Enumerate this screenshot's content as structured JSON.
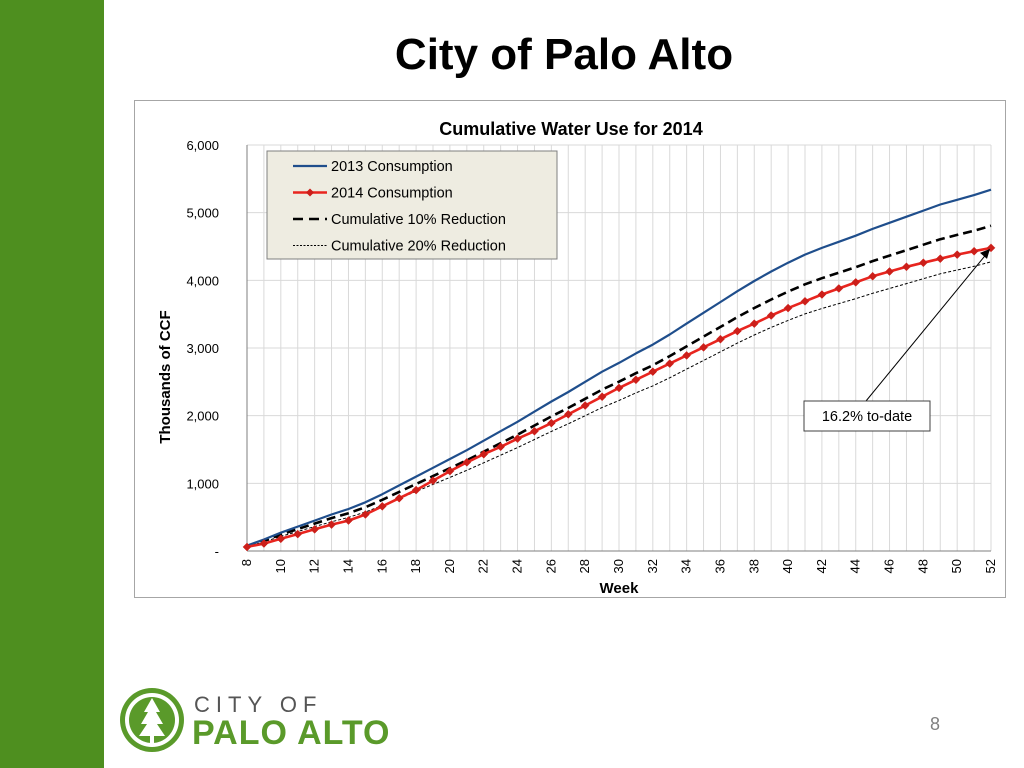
{
  "slide": {
    "title": "City of Palo Alto",
    "page_number": "8"
  },
  "logo": {
    "line1": "CITY OF",
    "line2": "PALO ALTO"
  },
  "colors": {
    "sidebar": "#4e8f1f",
    "series_2013": "#1f4e8c",
    "series_2014": "#e8251f",
    "series_2014_marker": "#cc1f1a",
    "reduction_10": "#000000",
    "reduction_20": "#000000"
  },
  "chart_data": {
    "type": "line",
    "title": "Cumulative Water Use for 2014",
    "xlabel": "Week",
    "ylabel": "Thousands of CCF",
    "xlim": [
      8,
      52
    ],
    "ylim": [
      0,
      6000
    ],
    "grid": true,
    "legend_position": "top-left",
    "x_ticks": [
      "8",
      "10",
      "12",
      "14",
      "16",
      "18",
      "20",
      "22",
      "24",
      "26",
      "28",
      "30",
      "32",
      "34",
      "36",
      "38",
      "40",
      "42",
      "44",
      "46",
      "48",
      "50",
      "52"
    ],
    "y_ticks": [
      "-",
      "1,000",
      "2,000",
      "3,000",
      "4,000",
      "5,000",
      "6,000"
    ],
    "x": [
      8,
      9,
      10,
      11,
      12,
      13,
      14,
      15,
      16,
      17,
      18,
      19,
      20,
      21,
      22,
      23,
      24,
      25,
      26,
      27,
      28,
      29,
      30,
      31,
      32,
      33,
      34,
      35,
      36,
      37,
      38,
      39,
      40,
      41,
      42,
      43,
      44,
      45,
      46,
      47,
      48,
      49,
      50,
      51,
      52
    ],
    "series": [
      {
        "name": "2013 Consumption",
        "style": "solid",
        "values": [
          80,
          170,
          270,
          360,
          450,
          540,
          620,
          720,
          840,
          970,
          1100,
          1230,
          1360,
          1490,
          1630,
          1770,
          1910,
          2060,
          2210,
          2350,
          2500,
          2650,
          2780,
          2920,
          3050,
          3200,
          3360,
          3520,
          3680,
          3840,
          3990,
          4130,
          4260,
          4380,
          4480,
          4570,
          4660,
          4760,
          4850,
          4940,
          5030,
          5120,
          5190,
          5260,
          5340
        ]
      },
      {
        "name": "2014 Consumption",
        "style": "marker",
        "values": [
          60,
          110,
          180,
          250,
          320,
          390,
          450,
          540,
          660,
          780,
          900,
          1040,
          1180,
          1310,
          1430,
          1540,
          1660,
          1770,
          1890,
          2020,
          2150,
          2280,
          2410,
          2530,
          2650,
          2770,
          2890,
          3010,
          3130,
          3250,
          3360,
          3480,
          3590,
          3690,
          3790,
          3880,
          3970,
          4060,
          4130,
          4200,
          4260,
          4320,
          4380,
          4430,
          4480
        ]
      },
      {
        "name": "Cumulative 10% Reduction",
        "style": "dashed",
        "values": [
          72,
          153,
          243,
          324,
          405,
          486,
          558,
          648,
          756,
          873,
          990,
          1107,
          1224,
          1341,
          1467,
          1593,
          1719,
          1854,
          1989,
          2115,
          2250,
          2385,
          2502,
          2628,
          2745,
          2880,
          3024,
          3168,
          3312,
          3456,
          3591,
          3717,
          3834,
          3942,
          4032,
          4113,
          4194,
          4284,
          4365,
          4446,
          4527,
          4608,
          4671,
          4734,
          4806
        ]
      },
      {
        "name": "Cumulative 20% Reduction",
        "style": "dotted",
        "values": [
          64,
          136,
          216,
          288,
          360,
          432,
          496,
          576,
          672,
          776,
          880,
          984,
          1088,
          1192,
          1304,
          1416,
          1528,
          1648,
          1768,
          1880,
          2000,
          2120,
          2224,
          2336,
          2440,
          2560,
          2688,
          2816,
          2944,
          3072,
          3192,
          3304,
          3408,
          3504,
          3584,
          3656,
          3728,
          3808,
          3880,
          3952,
          4024,
          4096,
          4152,
          4208,
          4272
        ]
      }
    ],
    "annotation": {
      "text": "16.2% to-date",
      "target_x": 52,
      "target_y": 4480
    }
  }
}
